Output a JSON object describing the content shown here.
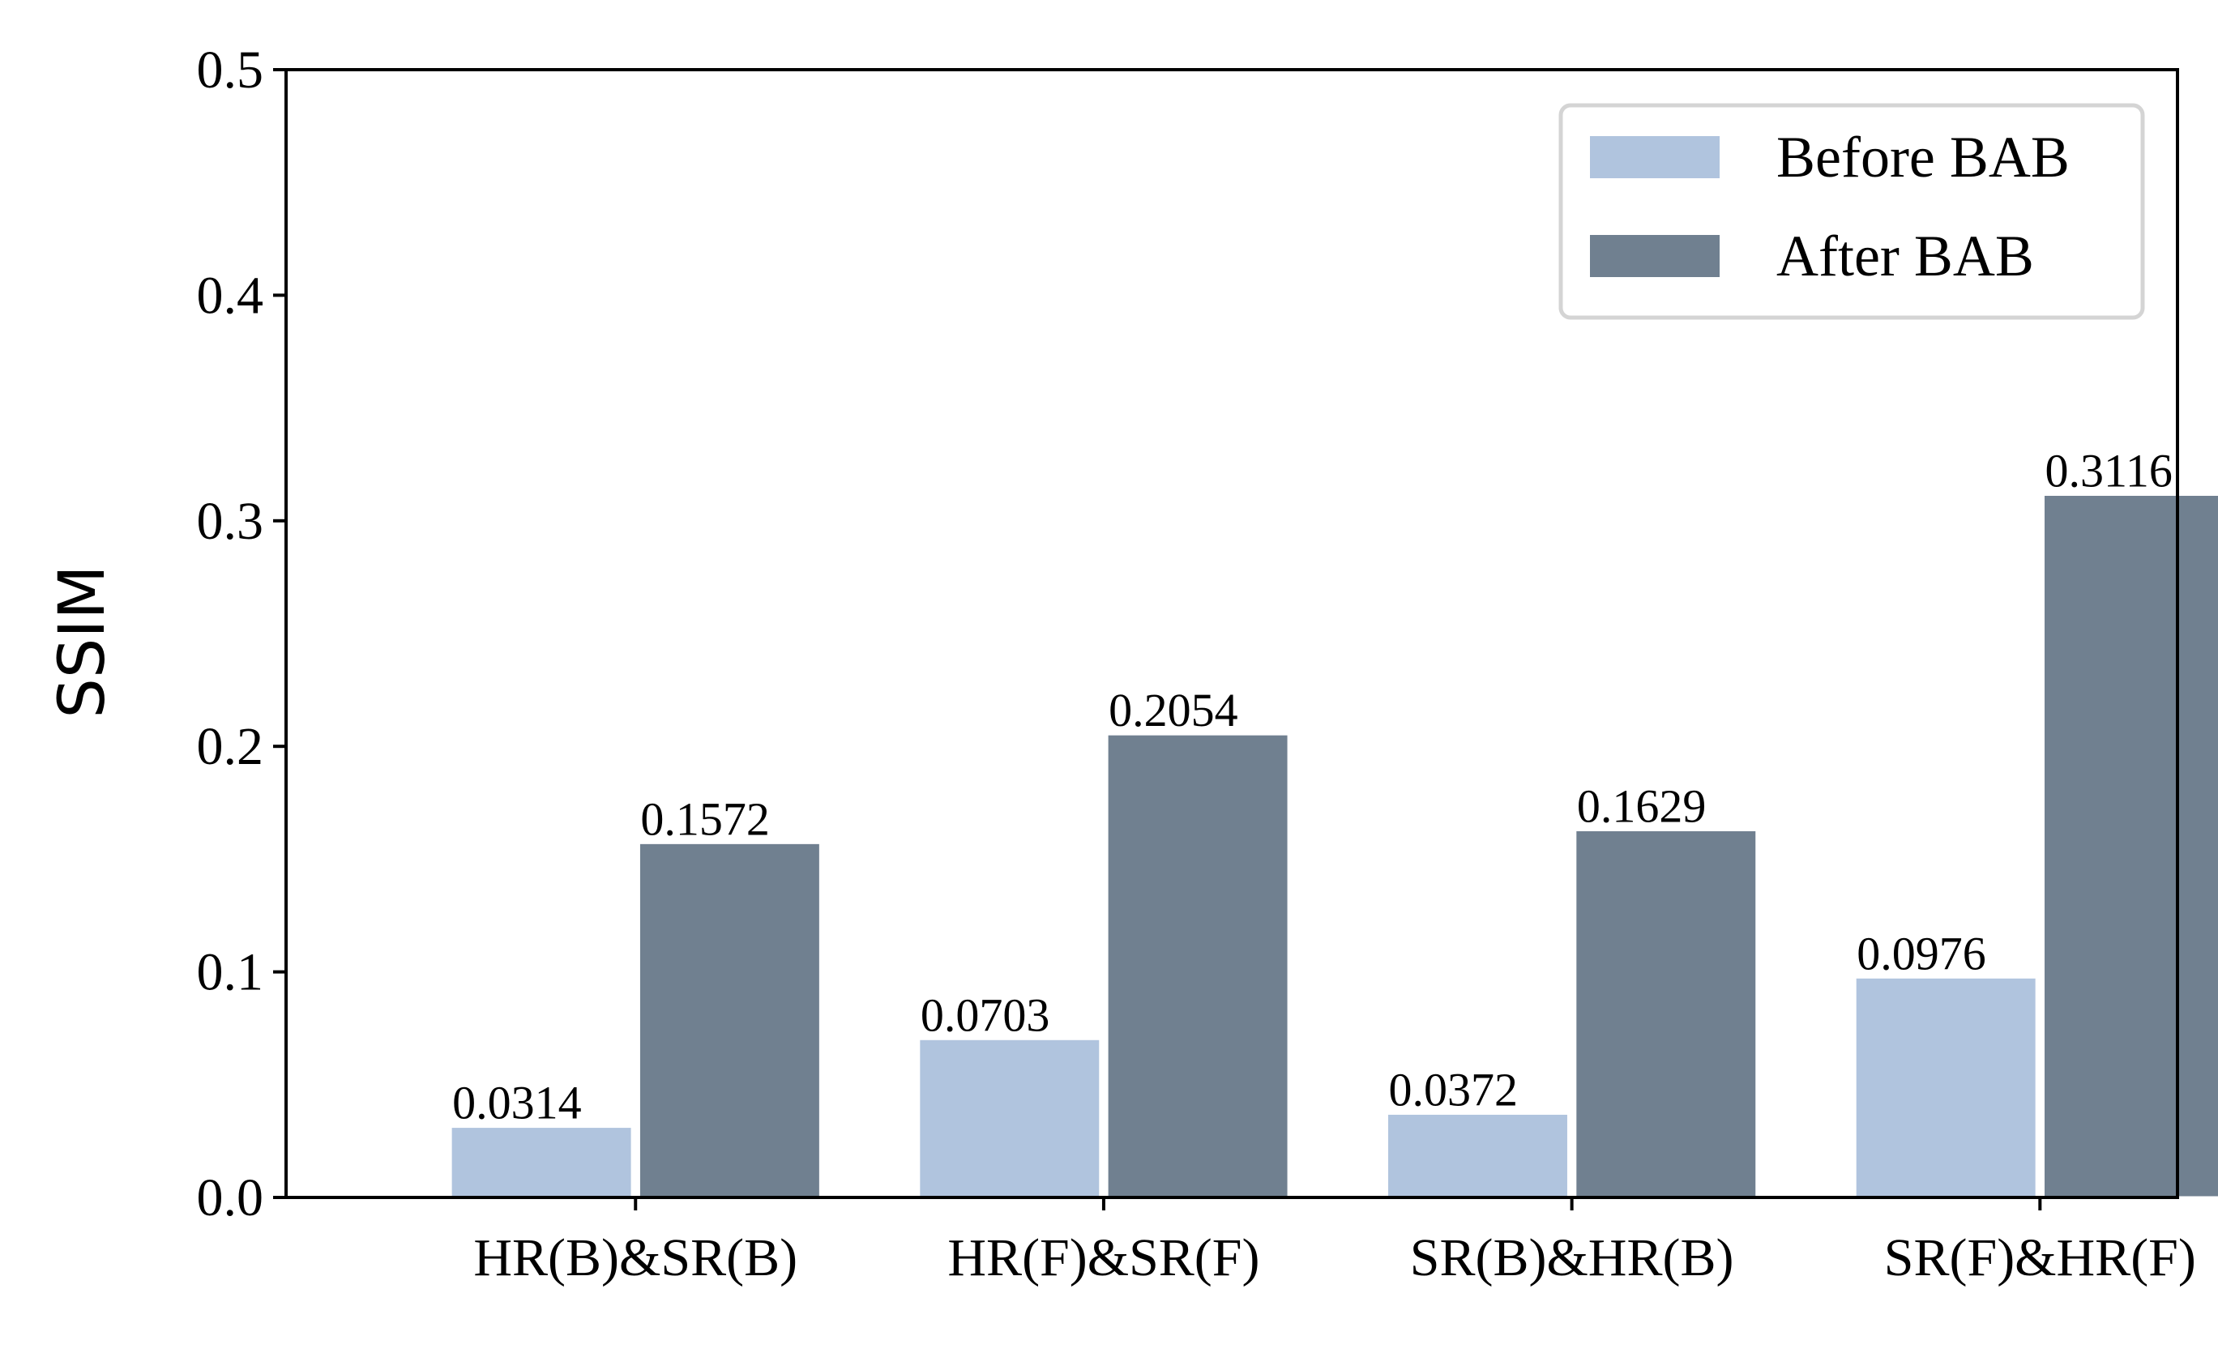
{
  "chart_data": {
    "type": "bar",
    "categories": [
      "HR(B)&SR(B)",
      "HR(F)&SR(F)",
      "SR(B)&HR(B)",
      "SR(F)&HR(F)"
    ],
    "series": [
      {
        "name": "Before BAB",
        "values": [
          0.0314,
          0.0703,
          0.0372,
          0.0976
        ],
        "labels": [
          "0.0314",
          "0.0703",
          "0.0372",
          "0.0976"
        ],
        "color": "#b0c4de"
      },
      {
        "name": "After BAB",
        "values": [
          0.1572,
          0.2054,
          0.1629,
          0.3116
        ],
        "labels": [
          "0.1572",
          "0.2054",
          "0.1629",
          "0.3116"
        ],
        "color": "#708090"
      }
    ],
    "title": "",
    "xlabel": "",
    "ylabel": "SSIM",
    "ylim": [
      0,
      0.5
    ],
    "yticks": [
      "0.0",
      "0.1",
      "0.2",
      "0.3",
      "0.4",
      "0.5"
    ],
    "grid": false,
    "legend_position": "top-right"
  }
}
